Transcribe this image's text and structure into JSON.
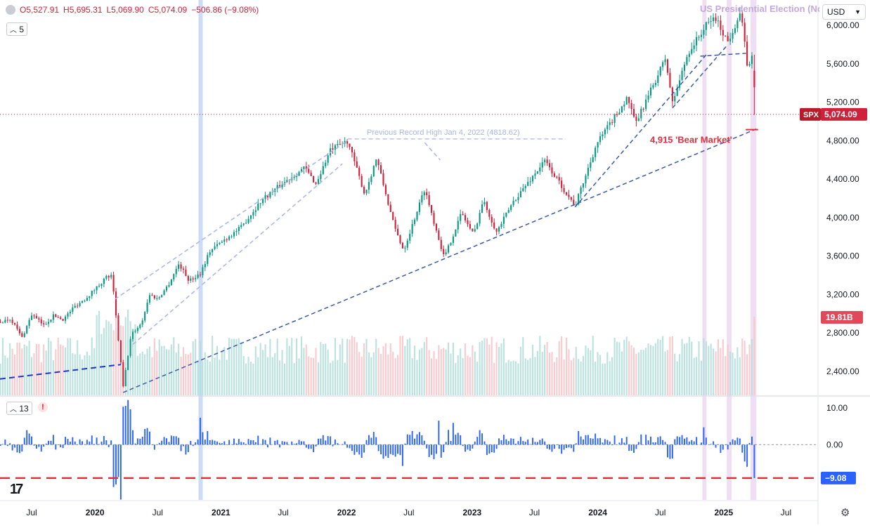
{
  "header": {
    "open_label": "O5,527.91",
    "high_label": "H5,695.31",
    "low_label": "L5,069.90",
    "close_label": "C5,074.09",
    "change_label": "−506.86 (−9.08%)",
    "interval_badge": "5",
    "currency": "USD",
    "event_label": "US Presidential Election (No"
  },
  "indicator": {
    "badge": "13",
    "alert": "!"
  },
  "colors": {
    "up": "#089981",
    "down": "#d0213b",
    "trend_dark": "#3a5aa8",
    "trend_light": "#a8b4ea",
    "trend_blue": "#1f35c9",
    "record_line": "#b5c0f0",
    "event_band": "#e8d6ee",
    "event_line": "#bfd3f2",
    "osc": "#2962ff",
    "bear_red": "#e03040"
  },
  "chart_data": [
    {
      "type": "candlestick",
      "title": "",
      "symbol": "SPX",
      "last_price": 5074.09,
      "last_price_label": "5,074.09",
      "ylim": [
        2150,
        6250
      ],
      "y_ticks": [
        2400,
        2800,
        3200,
        3600,
        4000,
        4400,
        4800,
        5200,
        5600,
        6000
      ],
      "y_tick_labels": [
        "2,400.00",
        "2,800.00",
        "3,200.00",
        "3,600.00",
        "4,000.00",
        "4,400.00",
        "4,800.00",
        "5,200.00",
        "5,600.00",
        "6,000.00"
      ],
      "x_ticks": [
        "Jul",
        "2020",
        "Jul",
        "2021",
        "Jul",
        "2022",
        "Jul",
        "2023",
        "Jul",
        "2024",
        "Jul",
        "2025",
        "Jul"
      ],
      "x_tick_dates": [
        "2019-07",
        "2020-01",
        "2020-07",
        "2021-01",
        "2021-07",
        "2022-01",
        "2022-07",
        "2023-01",
        "2023-07",
        "2024-01",
        "2024-07",
        "2025-01",
        "2025-07"
      ],
      "x_range": [
        "2019-03-31",
        "2025-09-30"
      ],
      "path": [
        [
          "2019-04-01",
          2910
        ],
        [
          "2019-05-01",
          2950
        ],
        [
          "2019-06-03",
          2750
        ],
        [
          "2019-07-01",
          2990
        ],
        [
          "2019-08-05",
          2880
        ],
        [
          "2019-09-03",
          2980
        ],
        [
          "2019-10-01",
          2940
        ],
        [
          "2019-11-01",
          3070
        ],
        [
          "2019-12-02",
          3150
        ],
        [
          "2020-01-02",
          3260
        ],
        [
          "2020-02-03",
          3380
        ],
        [
          "2020-02-19",
          3390
        ],
        [
          "2020-03-23",
          2240
        ],
        [
          "2020-04-15",
          2780
        ],
        [
          "2020-05-15",
          2900
        ],
        [
          "2020-06-08",
          3200
        ],
        [
          "2020-07-01",
          3150
        ],
        [
          "2020-08-01",
          3300
        ],
        [
          "2020-09-01",
          3520
        ],
        [
          "2020-10-01",
          3340
        ],
        [
          "2020-11-02",
          3420
        ],
        [
          "2020-12-01",
          3660
        ],
        [
          "2021-01-04",
          3750
        ],
        [
          "2021-03-01",
          3900
        ],
        [
          "2021-05-01",
          4190
        ],
        [
          "2021-07-01",
          4360
        ],
        [
          "2021-09-01",
          4520
        ],
        [
          "2021-10-04",
          4350
        ],
        [
          "2021-11-15",
          4700
        ],
        [
          "2022-01-04",
          4800
        ],
        [
          "2022-02-23",
          4240
        ],
        [
          "2022-03-29",
          4620
        ],
        [
          "2022-05-20",
          3900
        ],
        [
          "2022-06-16",
          3660
        ],
        [
          "2022-08-16",
          4300
        ],
        [
          "2022-10-12",
          3580
        ],
        [
          "2022-12-01",
          4050
        ],
        [
          "2023-01-05",
          3820
        ],
        [
          "2023-02-02",
          4180
        ],
        [
          "2023-03-13",
          3850
        ],
        [
          "2023-05-01",
          4170
        ],
        [
          "2023-07-31",
          4590
        ],
        [
          "2023-10-27",
          4120
        ],
        [
          "2023-12-29",
          4770
        ],
        [
          "2024-03-28",
          5250
        ],
        [
          "2024-04-19",
          4970
        ],
        [
          "2024-07-16",
          5660
        ],
        [
          "2024-08-05",
          5190
        ],
        [
          "2024-09-19",
          5710
        ],
        [
          "2024-11-11",
          6000
        ],
        [
          "2024-12-06",
          6090
        ],
        [
          "2025-01-13",
          5830
        ],
        [
          "2025-02-19",
          6140
        ],
        [
          "2025-03-13",
          5520
        ],
        [
          "2025-03-26",
          5710
        ],
        [
          "2025-04-04",
          5074.09
        ]
      ],
      "volume_note": "weekly volume histogram, last bar 19.81B",
      "volume_last_label": "19.81B",
      "previous_record_label": "Previous Record High Jan 4, 2022 (4818.62)",
      "previous_record_value": 4818.62,
      "bear_market_label": "4,915 'Bear Market'",
      "bear_market_value": 4915,
      "trendlines": [
        {
          "style": "solid-blue",
          "from": [
            "2019-03-31",
            2320
          ],
          "to": [
            "2020-03-16",
            2470
          ]
        },
        {
          "style": "dashed-dark",
          "from": [
            "2020-03-23",
            2180
          ],
          "to": [
            "2025-04-11",
            4930
          ]
        },
        {
          "style": "dashed-dark",
          "from": [
            "2023-10-27",
            4110
          ],
          "to": [
            "2024-11-15",
            5710
          ]
        },
        {
          "style": "dashed-dark",
          "from": [
            "2024-08-05",
            5140
          ],
          "to": [
            "2025-01-13",
            5800
          ]
        },
        {
          "style": "dashed-dark",
          "from": [
            "2024-10-25",
            5680
          ],
          "to": [
            "2025-03-07",
            5710
          ]
        },
        {
          "style": "dashed-light",
          "from": [
            "2020-02-28",
            3150
          ],
          "to": [
            "2022-01-04",
            4800
          ]
        },
        {
          "style": "dashed-light",
          "from": [
            "2020-04-20",
            2680
          ],
          "to": [
            "2021-12-20",
            4560
          ]
        },
        {
          "style": "dashed-light",
          "from": [
            "2022-08-16",
            4780
          ],
          "to": [
            "2022-09-30",
            4600
          ]
        }
      ],
      "event_bands": [
        {
          "from": "2024-10-31",
          "to": "2024-11-12"
        },
        {
          "from": "2025-01-10",
          "to": "2025-01-24"
        },
        {
          "from": "2025-03-20",
          "to": "2025-04-06"
        }
      ],
      "event_lines": [
        "2020-11-03"
      ]
    },
    {
      "type": "bar",
      "title": "",
      "series_note": "weekly % change histogram",
      "ylim": [
        -15,
        13
      ],
      "y_ticks": [
        10,
        0
      ],
      "y_tick_labels": [
        "10.00",
        "0.00"
      ],
      "last_value": -9.08,
      "last_value_label": "−9.08",
      "threshold": -9.08,
      "spikes": [
        [
          "2020-02-28",
          -11.5
        ],
        [
          "2020-03-13",
          -8.8
        ],
        [
          "2020-03-20",
          -14.9
        ],
        [
          "2020-03-27",
          10.3
        ],
        [
          "2020-04-10",
          12.1
        ],
        [
          "2020-11-06",
          7.3
        ],
        [
          "2022-06-17",
          -5.8
        ],
        [
          "2022-10-28",
          4.0
        ],
        [
          "2022-11-11",
          5.9
        ],
        [
          "2022-09-30",
          6.5
        ],
        [
          "2024-11-08",
          4.7
        ],
        [
          "2025-04-04",
          -9.08
        ]
      ]
    }
  ]
}
